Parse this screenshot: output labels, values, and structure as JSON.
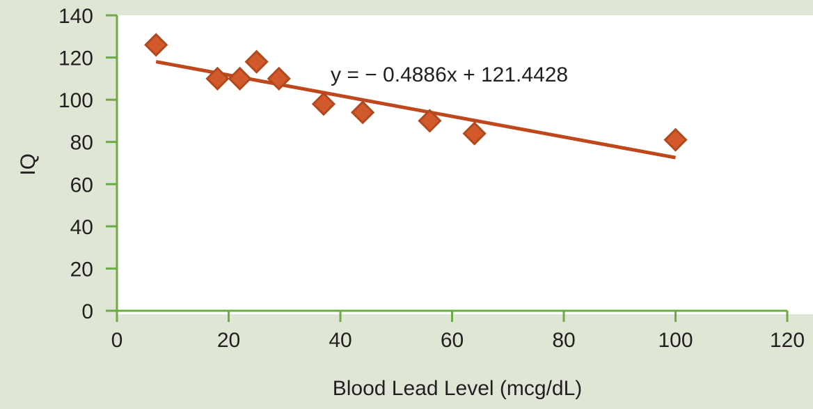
{
  "chart_data": {
    "type": "scatter",
    "title": "",
    "xlabel": "Blood Lead Level (mcg/dL)",
    "ylabel": "IQ",
    "xlim": [
      0,
      120
    ],
    "ylim": [
      0,
      140
    ],
    "xticks": [
      "0",
      "20",
      "40",
      "60",
      "80",
      "100",
      "120"
    ],
    "yticks": [
      "0",
      "20",
      "40",
      "60",
      "80",
      "100",
      "120",
      "140"
    ],
    "grid": false,
    "legend": "none",
    "series": [
      {
        "points": [
          {
            "x": 7,
            "y": 126
          },
          {
            "x": 18,
            "y": 110
          },
          {
            "x": 22,
            "y": 110
          },
          {
            "x": 25,
            "y": 118
          },
          {
            "x": 29,
            "y": 110
          },
          {
            "x": 37,
            "y": 98
          },
          {
            "x": 44,
            "y": 94
          },
          {
            "x": 56,
            "y": 90
          },
          {
            "x": 64,
            "y": 84
          },
          {
            "x": 100,
            "y": 81
          }
        ]
      }
    ],
    "trendline": {
      "type": "linear",
      "slope": -0.4886,
      "intercept": 121.4428,
      "x_range": [
        7,
        100
      ],
      "equation_label": "y = − 0.4886x + 121.4428"
    },
    "colors": {
      "background": "#dfe6d5",
      "plot_area": "#ffffff",
      "axis": "#6cab45",
      "marker_fill": "#d2592c",
      "marker_stroke": "#b04a1e",
      "trendline": "#c0461b"
    }
  }
}
